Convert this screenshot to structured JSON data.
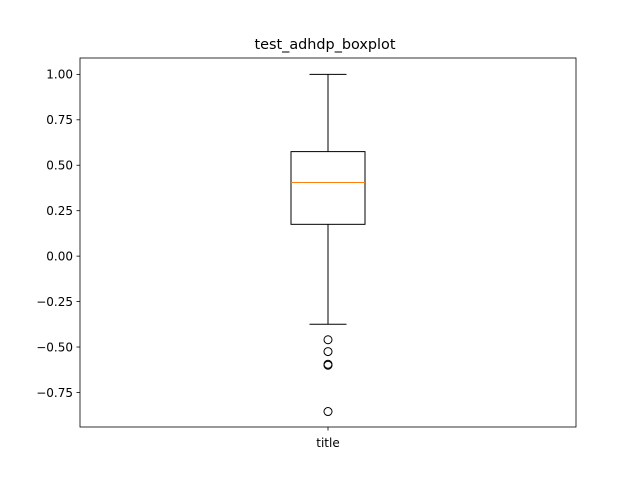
{
  "chart_data": {
    "type": "boxplot",
    "title": "test_adhdp_boxplot",
    "xlabel": "",
    "ylabel": "",
    "categories": [
      "title"
    ],
    "ylim": [
      -0.94,
      1.09
    ],
    "yticks": [
      1.0,
      0.75,
      0.5,
      0.25,
      0.0,
      -0.25,
      -0.5,
      -0.75
    ],
    "ytick_labels": [
      "1.00",
      "0.75",
      "0.50",
      "0.25",
      "0.00",
      "−0.25",
      "−0.50",
      "−0.75"
    ],
    "boxes": [
      {
        "category": "title",
        "whisker_low": -0.375,
        "q1": 0.175,
        "median": 0.405,
        "q3": 0.575,
        "whisker_high": 1.0,
        "outliers": [
          -0.46,
          -0.525,
          -0.595,
          -0.6,
          -0.855
        ]
      }
    ],
    "grid": false,
    "colors": {
      "box": "#000000",
      "median": "#ff7f0e",
      "outlier_edge": "#000000"
    }
  }
}
